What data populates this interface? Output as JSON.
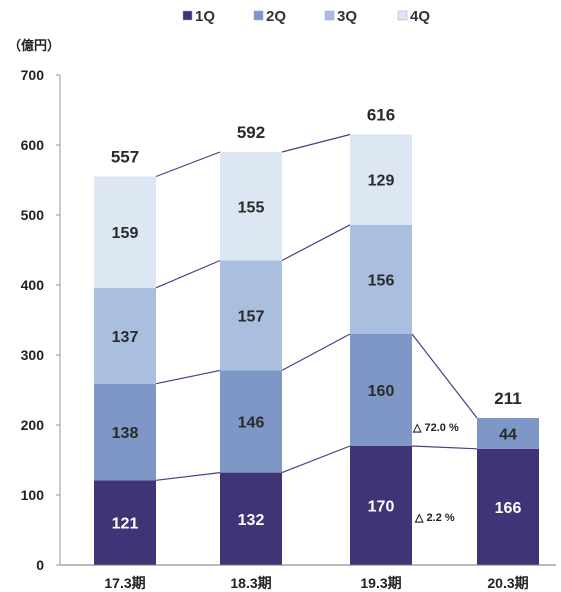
{
  "chart_data": {
    "type": "bar",
    "stacked": true,
    "unit": "（億円）",
    "categories": [
      "17.3期",
      "18.3期",
      "19.3期",
      "20.3期"
    ],
    "series": [
      {
        "name": "1Q",
        "values": [
          121,
          132,
          170,
          166
        ],
        "color": "#3e3476",
        "label_color": "#ffffff"
      },
      {
        "name": "2Q",
        "values": [
          138,
          146,
          160,
          44
        ],
        "color": "#7f97c7",
        "label_color": "#2a2a2a"
      },
      {
        "name": "3Q",
        "values": [
          137,
          157,
          156,
          null
        ],
        "color": "#aabfe0",
        "label_color": "#2a2a2a"
      },
      {
        "name": "4Q",
        "values": [
          159,
          155,
          129,
          null
        ],
        "color": "#dde7f4",
        "label_color": "#2a2a2a"
      }
    ],
    "totals": [
      557,
      592,
      616,
      211
    ],
    "yticks": [
      0,
      100,
      200,
      300,
      400,
      500,
      600,
      700
    ],
    "ylim": [
      0,
      700
    ],
    "grid": false,
    "legend_position": "top",
    "annotations": [
      {
        "text": "△ 72.0 %"
      },
      {
        "text": "△ 2.2 %"
      }
    ]
  }
}
